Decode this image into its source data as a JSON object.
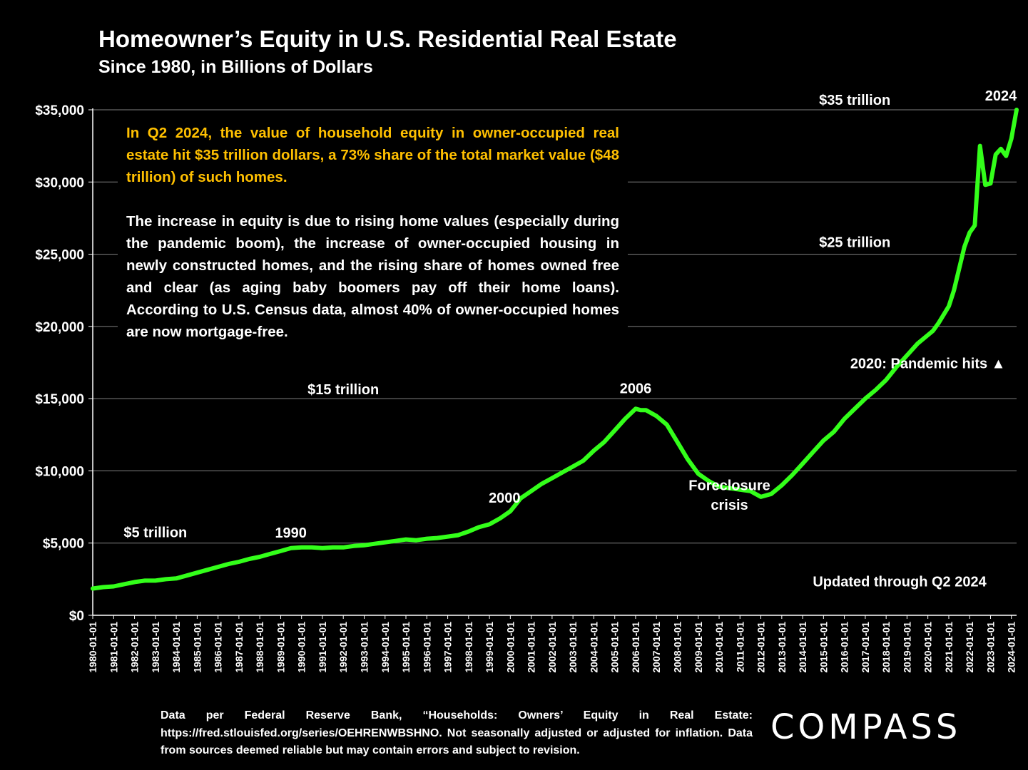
{
  "header": {
    "title": "Homeowner’s Equity in U.S. Residential Real Estate",
    "subtitle": "Since 1980, in Billions of Dollars"
  },
  "info_box": {
    "para1": "In Q2 2024, the value of household equity in owner-occupied real estate hit $35 trillion dollars, a 73% share of the total market value ($48 trillion) of such homes.",
    "para2": "The increase in equity is due to rising home values (especially during the pandemic boom), the increase of owner-occupied housing in newly constructed homes, and the rising share of homes owned free and clear (as aging baby boomers pay off their home loans). According to U.S. Census data, almost 40% of owner-occupied homes are now mortgage-free."
  },
  "footer": {
    "source": "Data per Federal Reserve Bank, “Households: Owners’ Equity in Real Estate: https://fred.stlouisfed.org/series/OEHRENWBSHNO. Not seasonally adjusted or adjusted for inflation. Data from sources deemed reliable but may contain errors and subject to revision."
  },
  "logo": {
    "text": "COMPASS"
  },
  "colors": {
    "line": "#33ff1a",
    "highlight": "#ffc000",
    "background": "#000000",
    "grid": "#808080"
  },
  "chart_data": {
    "type": "line",
    "title": "",
    "xlabel": "",
    "ylabel": "",
    "ylim": [
      0,
      35000
    ],
    "y_ticks": [
      0,
      5000,
      10000,
      15000,
      20000,
      25000,
      30000,
      35000
    ],
    "y_tick_labels": [
      "$0",
      "$5,000",
      "$10,000",
      "$15,000",
      "$20,000",
      "$25,000",
      "$30,000",
      "$35,000"
    ],
    "x_tick_labels": [
      "1980-01-01",
      "1981-01-01",
      "1982-01-01",
      "1983-01-01",
      "1984-01-01",
      "1985-01-01",
      "1986-01-01",
      "1987-01-01",
      "1988-01-01",
      "1989-01-01",
      "1990-01-01",
      "1991-01-01",
      "1992-01-01",
      "1993-01-01",
      "1994-01-01",
      "1995-01-01",
      "1996-01-01",
      "1997-01-01",
      "1998-01-01",
      "1999-01-01",
      "2000-01-01",
      "2001-01-01",
      "2002-01-01",
      "2003-01-01",
      "2004-01-01",
      "2005-01-01",
      "2006-01-01",
      "2007-01-01",
      "2008-01-01",
      "2009-01-01",
      "2010-01-01",
      "2011-01-01",
      "2012-01-01",
      "2013-01-01",
      "2014-01-01",
      "2015-01-01",
      "2016-01-01",
      "2017-01-01",
      "2018-01-01",
      "2019-01-01",
      "2020-01-01",
      "2021-01-01",
      "2022-01-01",
      "2023-01-01",
      "2024-01-01"
    ],
    "grid": true,
    "series": [
      {
        "x": [
          "1980-01-01",
          "1980-07-01",
          "1981-01-01",
          "1981-07-01",
          "1982-01-01",
          "1982-07-01",
          "1983-01-01",
          "1983-07-01",
          "1984-01-01",
          "1984-07-01",
          "1985-01-01",
          "1985-07-01",
          "1986-01-01",
          "1986-07-01",
          "1987-01-01",
          "1987-07-01",
          "1988-01-01",
          "1988-07-01",
          "1989-01-01",
          "1989-07-01",
          "1990-01-01",
          "1990-07-01",
          "1991-01-01",
          "1991-07-01",
          "1992-01-01",
          "1992-07-01",
          "1993-01-01",
          "1993-07-01",
          "1994-01-01",
          "1994-07-01",
          "1995-01-01",
          "1995-07-01",
          "1996-01-01",
          "1996-07-01",
          "1997-01-01",
          "1997-07-01",
          "1998-01-01",
          "1998-07-01",
          "1999-01-01",
          "1999-07-01",
          "2000-01-01",
          "2000-07-01",
          "2001-01-01",
          "2001-07-01",
          "2002-01-01",
          "2002-07-01",
          "2003-01-01",
          "2003-07-01",
          "2004-01-01",
          "2004-07-01",
          "2005-01-01",
          "2005-07-01",
          "2006-01-01",
          "2006-04-01",
          "2006-07-01",
          "2007-01-01",
          "2007-07-01",
          "2008-01-01",
          "2008-07-01",
          "2009-01-01",
          "2009-07-01",
          "2010-01-01",
          "2010-07-01",
          "2011-01-01",
          "2011-07-01",
          "2012-01-01",
          "2012-07-01",
          "2013-01-01",
          "2013-07-01",
          "2014-01-01",
          "2014-07-01",
          "2015-01-01",
          "2015-07-01",
          "2016-01-01",
          "2016-07-01",
          "2017-01-01",
          "2017-07-01",
          "2018-01-01",
          "2018-07-01",
          "2019-01-01",
          "2019-07-01",
          "2020-01-01",
          "2020-04-01",
          "2020-07-01",
          "2020-10-01",
          "2021-01-01",
          "2021-04-01",
          "2021-07-01",
          "2021-10-01",
          "2022-01-01",
          "2022-04-01",
          "2022-07-01",
          "2022-10-01",
          "2023-01-01",
          "2023-04-01",
          "2023-07-01",
          "2023-10-01",
          "2024-01-01",
          "2024-04-01"
        ],
        "values": [
          1850,
          1950,
          2000,
          2150,
          2300,
          2400,
          2400,
          2500,
          2550,
          2750,
          2950,
          3150,
          3350,
          3550,
          3700,
          3900,
          4050,
          4250,
          4450,
          4650,
          4700,
          4700,
          4650,
          4700,
          4700,
          4800,
          4850,
          4950,
          5050,
          5150,
          5250,
          5200,
          5300,
          5350,
          5450,
          5550,
          5800,
          6100,
          6300,
          6700,
          7200,
          8100,
          8600,
          9100,
          9500,
          9900,
          10300,
          10700,
          11400,
          12000,
          12800,
          13600,
          14300,
          14200,
          14200,
          13800,
          13200,
          12000,
          10800,
          9800,
          9300,
          8900,
          8800,
          8700,
          8600,
          8200,
          8400,
          9000,
          9700,
          10500,
          11300,
          12100,
          12700,
          13600,
          14300,
          15000,
          15600,
          16300,
          17200,
          18000,
          18800,
          19400,
          19700,
          20200,
          20800,
          21400,
          22500,
          24000,
          25500,
          26500,
          27000,
          32500,
          29800,
          29900,
          31900,
          32300,
          31800,
          33000,
          35000
        ]
      }
    ],
    "annotations": [
      {
        "text": "$35 trillion",
        "x": "2016-07-01",
        "y": 35000
      },
      {
        "text": "$25 trillion",
        "x": "2016-07-01",
        "y": 25000
      },
      {
        "text": "$15 trillion",
        "x": "1992-01-01",
        "y": 15000
      },
      {
        "text": "$5 trillion",
        "x": "1983-01-01",
        "y": 5000
      },
      {
        "text": "2024",
        "x": "2024-04-01",
        "y": 35000
      },
      {
        "text": "2020:  Pandemic hits ▲",
        "x": "2020-01-01",
        "y": 17500
      },
      {
        "text": "2006",
        "x": "2006-01-01",
        "y": 14300
      },
      {
        "text": "2000",
        "x": "2000-01-01",
        "y": 7200
      },
      {
        "text": "1990",
        "x": "1990-01-01",
        "y": 4700
      },
      {
        "text": "Foreclosure",
        "x": "2010-07-01",
        "y": 9300
      },
      {
        "text": "crisis",
        "x": "2010-07-01",
        "y": 8000
      },
      {
        "text": "Updated through Q2 2024",
        "x": "2024-01-01",
        "y": 1000
      }
    ]
  }
}
